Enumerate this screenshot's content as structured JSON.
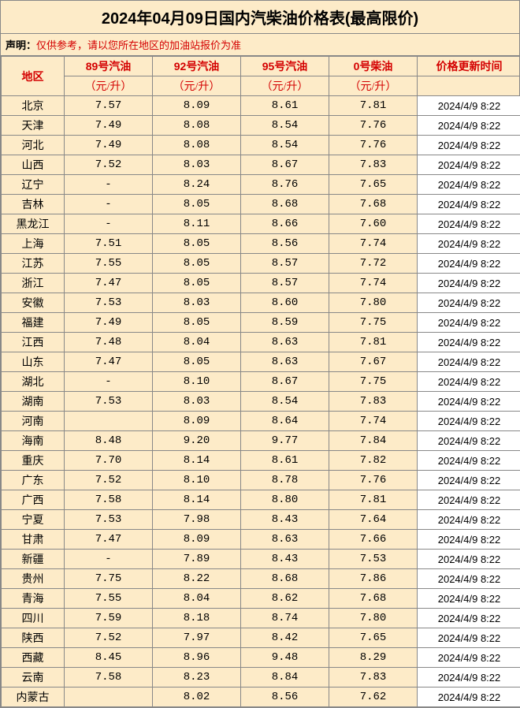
{
  "title": "2024年04月09日国内汽柴油价格表(最高限价)",
  "disclaimer_label": "声明：",
  "disclaimer_text": "仅供参考，请以您所在地区的加油站报价为准",
  "columns": {
    "region": "地区",
    "p89": "89号汽油",
    "p92": "92号汽油",
    "p95": "95号汽油",
    "p0": "0号柴油",
    "time": "价格更新时间",
    "unit": "（元/升）"
  },
  "rows": [
    {
      "region": "北京",
      "p89": "7.57",
      "p92": "8.09",
      "p95": "8.61",
      "p0": "7.81",
      "time": "2024/4/9 8:22"
    },
    {
      "region": "天津",
      "p89": "7.49",
      "p92": "8.08",
      "p95": "8.54",
      "p0": "7.76",
      "time": "2024/4/9 8:22"
    },
    {
      "region": "河北",
      "p89": "7.49",
      "p92": "8.08",
      "p95": "8.54",
      "p0": "7.76",
      "time": "2024/4/9 8:22"
    },
    {
      "region": "山西",
      "p89": "7.52",
      "p92": "8.03",
      "p95": "8.67",
      "p0": "7.83",
      "time": "2024/4/9 8:22"
    },
    {
      "region": "辽宁",
      "p89": "-",
      "p92": "8.24",
      "p95": "8.76",
      "p0": "7.65",
      "time": "2024/4/9 8:22"
    },
    {
      "region": "吉林",
      "p89": "-",
      "p92": "8.05",
      "p95": "8.68",
      "p0": "7.68",
      "time": "2024/4/9 8:22"
    },
    {
      "region": "黑龙江",
      "p89": "-",
      "p92": "8.11",
      "p95": "8.66",
      "p0": "7.60",
      "time": "2024/4/9 8:22"
    },
    {
      "region": "上海",
      "p89": "7.51",
      "p92": "8.05",
      "p95": "8.56",
      "p0": "7.74",
      "time": "2024/4/9 8:22"
    },
    {
      "region": "江苏",
      "p89": "7.55",
      "p92": "8.05",
      "p95": "8.57",
      "p0": "7.72",
      "time": "2024/4/9 8:22"
    },
    {
      "region": "浙江",
      "p89": "7.47",
      "p92": "8.05",
      "p95": "8.57",
      "p0": "7.74",
      "time": "2024/4/9 8:22"
    },
    {
      "region": "安徽",
      "p89": "7.53",
      "p92": "8.03",
      "p95": "8.60",
      "p0": "7.80",
      "time": "2024/4/9 8:22"
    },
    {
      "region": "福建",
      "p89": "7.49",
      "p92": "8.05",
      "p95": "8.59",
      "p0": "7.75",
      "time": "2024/4/9 8:22"
    },
    {
      "region": "江西",
      "p89": "7.48",
      "p92": "8.04",
      "p95": "8.63",
      "p0": "7.81",
      "time": "2024/4/9 8:22"
    },
    {
      "region": "山东",
      "p89": "7.47",
      "p92": "8.05",
      "p95": "8.63",
      "p0": "7.67",
      "time": "2024/4/9 8:22"
    },
    {
      "region": "湖北",
      "p89": "-",
      "p92": "8.10",
      "p95": "8.67",
      "p0": "7.75",
      "time": "2024/4/9 8:22"
    },
    {
      "region": "湖南",
      "p89": "7.53",
      "p92": "8.03",
      "p95": "8.54",
      "p0": "7.83",
      "time": "2024/4/9 8:22"
    },
    {
      "region": "河南",
      "p89": "",
      "p92": "8.09",
      "p95": "8.64",
      "p0": "7.74",
      "time": "2024/4/9 8:22"
    },
    {
      "region": "海南",
      "p89": "8.48",
      "p92": "9.20",
      "p95": "9.77",
      "p0": "7.84",
      "time": "2024/4/9 8:22"
    },
    {
      "region": "重庆",
      "p89": "7.70",
      "p92": "8.14",
      "p95": "8.61",
      "p0": "7.82",
      "time": "2024/4/9 8:22"
    },
    {
      "region": "广东",
      "p89": "7.52",
      "p92": "8.10",
      "p95": "8.78",
      "p0": "7.76",
      "time": "2024/4/9 8:22"
    },
    {
      "region": "广西",
      "p89": "7.58",
      "p92": "8.14",
      "p95": "8.80",
      "p0": "7.81",
      "time": "2024/4/9 8:22"
    },
    {
      "region": "宁夏",
      "p89": "7.53",
      "p92": "7.98",
      "p95": "8.43",
      "p0": "7.64",
      "time": "2024/4/9 8:22"
    },
    {
      "region": "甘肃",
      "p89": "7.47",
      "p92": "8.09",
      "p95": "8.63",
      "p0": "7.66",
      "time": "2024/4/9 8:22"
    },
    {
      "region": "新疆",
      "p89": "-",
      "p92": "7.89",
      "p95": "8.43",
      "p0": "7.53",
      "time": "2024/4/9 8:22"
    },
    {
      "region": "贵州",
      "p89": "7.75",
      "p92": "8.22",
      "p95": "8.68",
      "p0": "7.86",
      "time": "2024/4/9 8:22"
    },
    {
      "region": "青海",
      "p89": "7.55",
      "p92": "8.04",
      "p95": "8.62",
      "p0": "7.68",
      "time": "2024/4/9 8:22"
    },
    {
      "region": "四川",
      "p89": "7.59",
      "p92": "8.18",
      "p95": "8.74",
      "p0": "7.80",
      "time": "2024/4/9 8:22"
    },
    {
      "region": "陕西",
      "p89": "7.52",
      "p92": "7.97",
      "p95": "8.42",
      "p0": "7.65",
      "time": "2024/4/9 8:22"
    },
    {
      "region": "西藏",
      "p89": "8.45",
      "p92": "8.96",
      "p95": "9.48",
      "p0": "8.29",
      "time": "2024/4/9 8:22"
    },
    {
      "region": "云南",
      "p89": "7.58",
      "p92": "8.23",
      "p95": "8.84",
      "p0": "7.83",
      "time": "2024/4/9 8:22"
    },
    {
      "region": "内蒙古",
      "p89": "",
      "p92": "8.02",
      "p95": "8.56",
      "p0": "7.62",
      "time": "2024/4/9 8:22"
    }
  ]
}
